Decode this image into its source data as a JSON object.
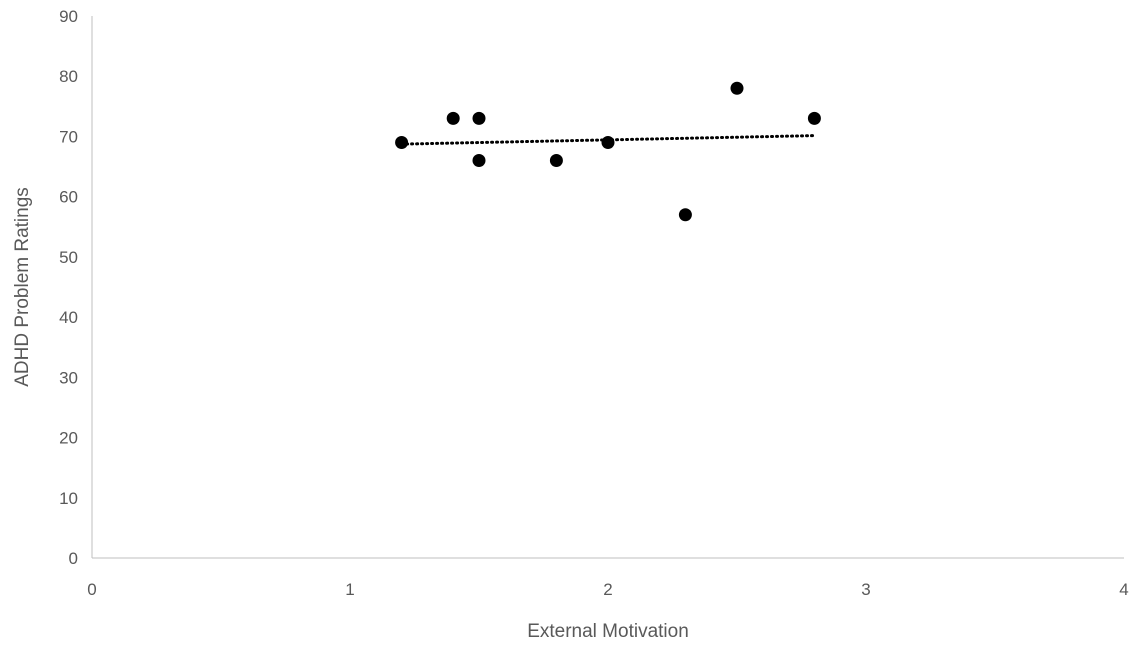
{
  "chart_data": {
    "type": "scatter",
    "title": "",
    "xlabel": "External Motivation",
    "ylabel": "ADHD Problem Ratings",
    "xlim": [
      0,
      4
    ],
    "ylim": [
      0,
      90
    ],
    "xticks": [
      "0",
      "1",
      "2",
      "3",
      "4"
    ],
    "yticks": [
      "0",
      "10",
      "20",
      "30",
      "40",
      "50",
      "60",
      "70",
      "80",
      "90"
    ],
    "grid": false,
    "legend": "none",
    "points": [
      {
        "x": 1.2,
        "y": 69
      },
      {
        "x": 1.4,
        "y": 73
      },
      {
        "x": 1.5,
        "y": 73
      },
      {
        "x": 1.5,
        "y": 66
      },
      {
        "x": 1.8,
        "y": 66
      },
      {
        "x": 2.0,
        "y": 69
      },
      {
        "x": 2.3,
        "y": 57
      },
      {
        "x": 2.5,
        "y": 78
      },
      {
        "x": 2.8,
        "y": 73
      }
    ],
    "trendline": {
      "type": "linear",
      "style": "dotted",
      "x_start": 1.2,
      "x_end": 2.8
    },
    "colors": {
      "marker": "#000000",
      "axis": "#bfbfbf",
      "text": "#595959"
    }
  }
}
